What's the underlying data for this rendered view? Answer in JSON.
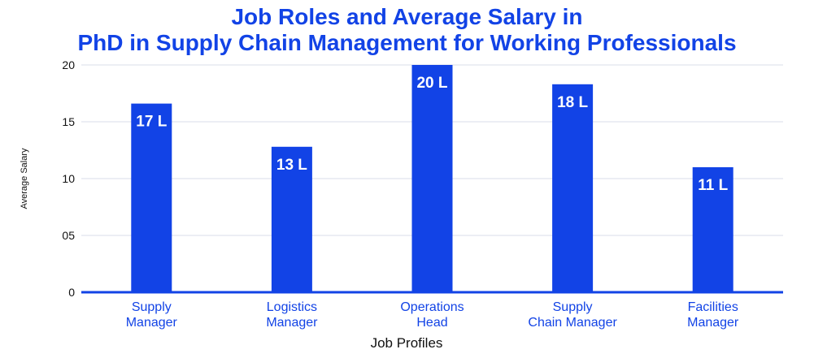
{
  "chart_data": {
    "type": "bar",
    "title_lines": [
      "Job Roles and Average Salary in",
      "PhD in Supply Chain Management for Working Professionals"
    ],
    "xlabel": "Job Profiles",
    "ylabel": "Average Salary",
    "ylim": [
      0,
      20
    ],
    "yticks": [
      "0",
      "05",
      "10",
      "15",
      "20"
    ],
    "grid": true,
    "categories": [
      [
        "Supply",
        "Manager"
      ],
      [
        "Logistics",
        "Manager"
      ],
      [
        "Operations",
        "Head"
      ],
      [
        "Supply",
        "Chain Manager"
      ],
      [
        "Facilities",
        "Manager"
      ]
    ],
    "values": [
      16.6,
      12.8,
      20,
      18.3,
      11
    ],
    "data_labels": [
      "17 L",
      "13 L",
      "20 L",
      "18 L",
      "11 L"
    ],
    "colors": {
      "bar": "#1243e6",
      "title": "#1243e6",
      "grid": "#d9dde8",
      "axis": "#1243e6"
    }
  }
}
